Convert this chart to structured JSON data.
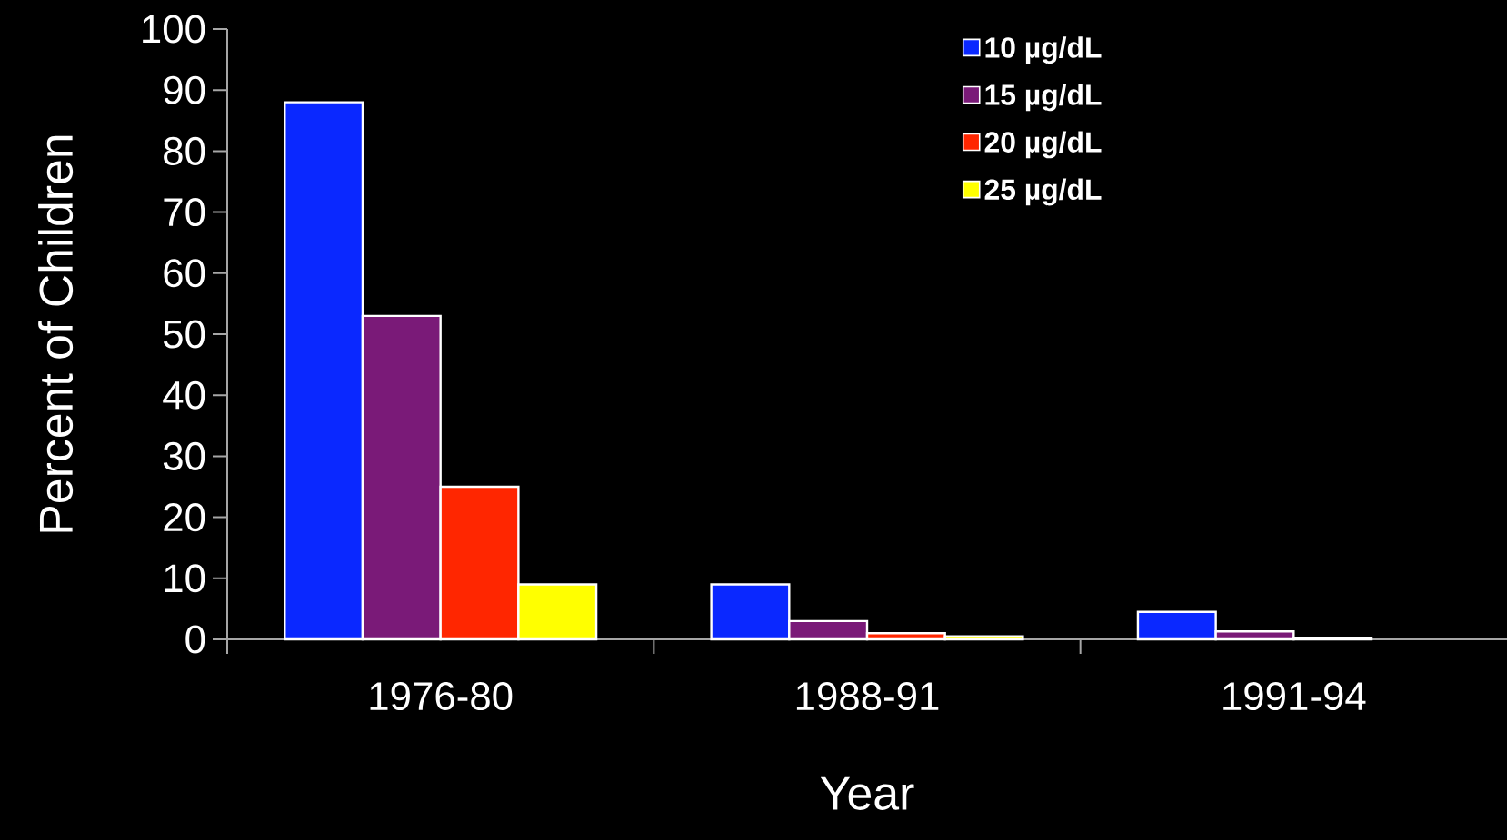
{
  "chart_data": {
    "type": "bar",
    "xlabel": "Year",
    "ylabel": "Percent of Children",
    "categories": [
      "1976-80",
      "1988-91",
      "1991-94"
    ],
    "series": [
      {
        "name": "10 µg/dL",
        "color": "#0a28ff",
        "values": [
          88,
          9,
          4.5
        ]
      },
      {
        "name": "15 µg/dL",
        "color": "#7a1a78",
        "values": [
          53,
          3,
          1.3
        ]
      },
      {
        "name": "20 µg/dL",
        "color": "#ff2600",
        "values": [
          25,
          1,
          0.2
        ]
      },
      {
        "name": "25 µg/dL",
        "color": "#ffff00",
        "values": [
          9,
          0.5,
          null
        ]
      }
    ],
    "ylim": [
      0,
      100
    ],
    "yticks": [
      0,
      10,
      20,
      30,
      40,
      50,
      60,
      70,
      80,
      90,
      100
    ],
    "legend": "top right",
    "grid": false
  }
}
